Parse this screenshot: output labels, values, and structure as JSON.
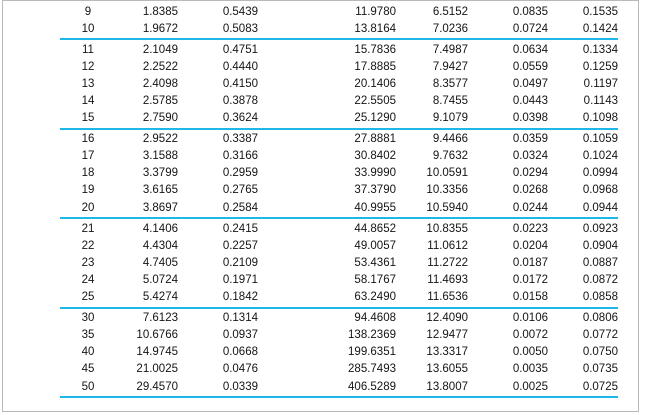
{
  "colors": {
    "divider_line": "#1db8e8",
    "page_border": "#b9b9b9",
    "text": "#141414",
    "background": "#ffffff"
  },
  "table": {
    "columns_visible": 7,
    "header_visible": false,
    "groups": [
      {
        "rows": [
          [
            "9",
            "1.8385",
            "0.5439",
            "11.9780",
            "6.5152",
            "0.0835",
            "0.1535"
          ],
          [
            "10",
            "1.9672",
            "0.5083",
            "13.8164",
            "7.0236",
            "0.0724",
            "0.1424"
          ]
        ]
      },
      {
        "rows": [
          [
            "11",
            "2.1049",
            "0.4751",
            "15.7836",
            "7.4987",
            "0.0634",
            "0.1334"
          ],
          [
            "12",
            "2.2522",
            "0.4440",
            "17.8885",
            "7.9427",
            "0.0559",
            "0.1259"
          ],
          [
            "13",
            "2.4098",
            "0.4150",
            "20.1406",
            "8.3577",
            "0.0497",
            "0.1197"
          ],
          [
            "14",
            "2.5785",
            "0.3878",
            "22.5505",
            "8.7455",
            "0.0443",
            "0.1143"
          ],
          [
            "15",
            "2.7590",
            "0.3624",
            "25.1290",
            "9.1079",
            "0.0398",
            "0.1098"
          ]
        ]
      },
      {
        "rows": [
          [
            "16",
            "2.9522",
            "0.3387",
            "27.8881",
            "9.4466",
            "0.0359",
            "0.1059"
          ],
          [
            "17",
            "3.1588",
            "0.3166",
            "30.8402",
            "9.7632",
            "0.0324",
            "0.1024"
          ],
          [
            "18",
            "3.3799",
            "0.2959",
            "33.9990",
            "10.0591",
            "0.0294",
            "0.0994"
          ],
          [
            "19",
            "3.6165",
            "0.2765",
            "37.3790",
            "10.3356",
            "0.0268",
            "0.0968"
          ],
          [
            "20",
            "3.8697",
            "0.2584",
            "40.9955",
            "10.5940",
            "0.0244",
            "0.0944"
          ]
        ]
      },
      {
        "rows": [
          [
            "21",
            "4.1406",
            "0.2415",
            "44.8652",
            "10.8355",
            "0.0223",
            "0.0923"
          ],
          [
            "22",
            "4.4304",
            "0.2257",
            "49.0057",
            "11.0612",
            "0.0204",
            "0.0904"
          ],
          [
            "23",
            "4.7405",
            "0.2109",
            "53.4361",
            "11.2722",
            "0.0187",
            "0.0887"
          ],
          [
            "24",
            "5.0724",
            "0.1971",
            "58.1767",
            "11.4693",
            "0.0172",
            "0.0872"
          ],
          [
            "25",
            "5.4274",
            "0.1842",
            "63.2490",
            "11.6536",
            "0.0158",
            "0.0858"
          ]
        ]
      },
      {
        "rows": [
          [
            "30",
            "7.6123",
            "0.1314",
            "94.4608",
            "12.4090",
            "0.0106",
            "0.0806"
          ],
          [
            "35",
            "10.6766",
            "0.0937",
            "138.2369",
            "12.9477",
            "0.0072",
            "0.0772"
          ],
          [
            "40",
            "14.9745",
            "0.0668",
            "199.6351",
            "13.3317",
            "0.0050",
            "0.0750"
          ],
          [
            "45",
            "21.0025",
            "0.0476",
            "285.7493",
            "13.6055",
            "0.0035",
            "0.0735"
          ],
          [
            "50",
            "29.4570",
            "0.0339",
            "406.5289",
            "13.8007",
            "0.0025",
            "0.0725"
          ]
        ]
      }
    ]
  }
}
